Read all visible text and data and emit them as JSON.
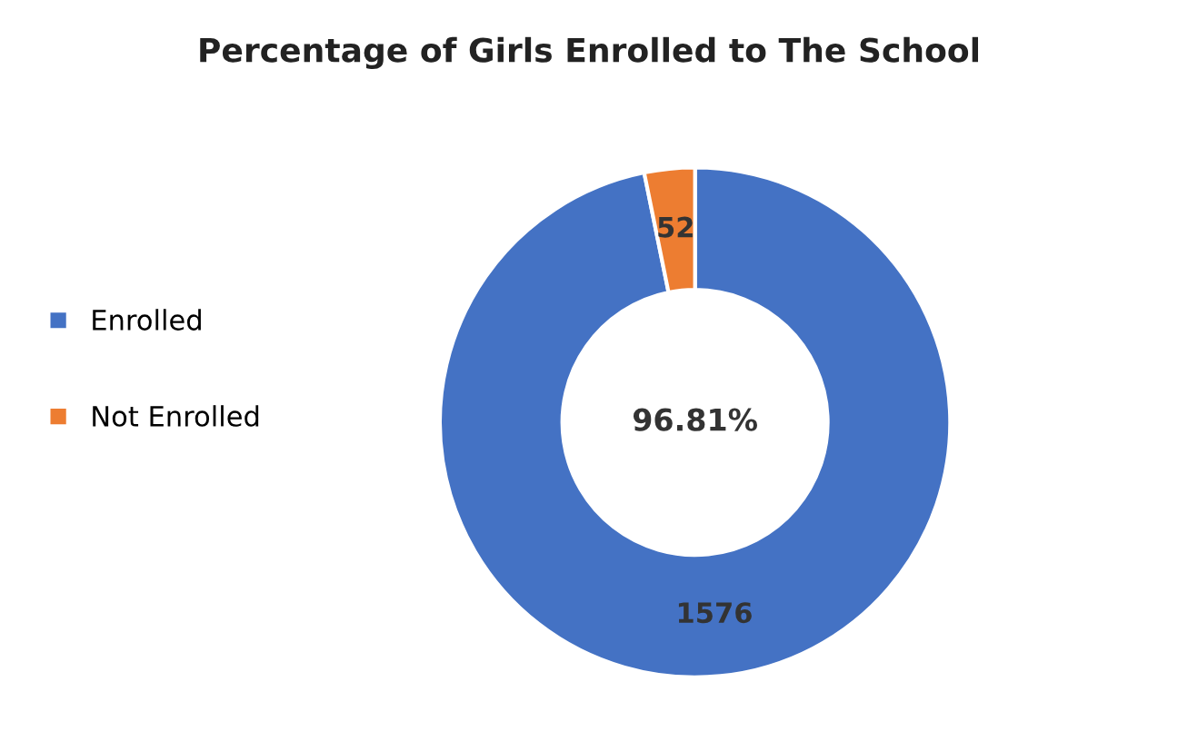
{
  "chart_data": {
    "type": "donut",
    "title": "Percentage of Girls Enrolled to The School",
    "categories": [
      "Enrolled",
      "Not Enrolled"
    ],
    "values": [
      1576,
      52
    ],
    "colors": [
      "#4472c4",
      "#ed7d31"
    ],
    "data_labels": true,
    "legend": "left",
    "annotations": [
      "96.81%"
    ]
  }
}
